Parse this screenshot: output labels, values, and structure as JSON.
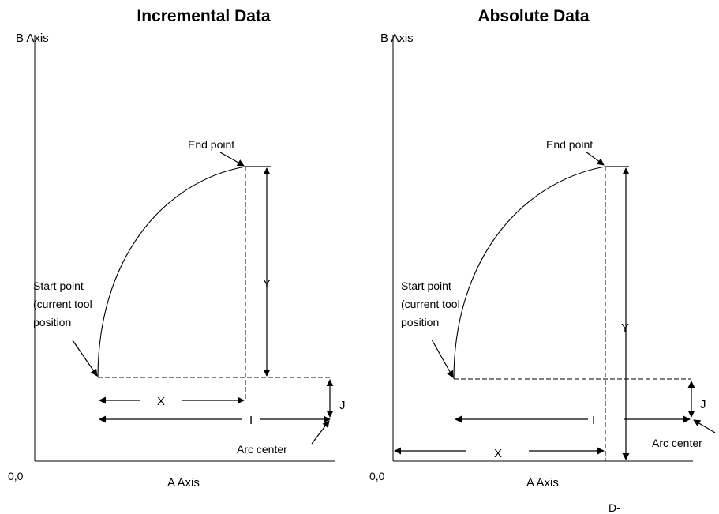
{
  "incremental": {
    "title": "Incremental Data",
    "y_axis_label": "B Axis",
    "x_axis_label": "A Axis",
    "origin_label": "0,0",
    "end_point": "End point",
    "start_point_line1": "Start point",
    "start_point_line2": "(current tool",
    "start_point_line3": "position",
    "dim_y": "Y",
    "dim_x": "X",
    "dim_i": "I",
    "dim_j": "J",
    "arc_center": "Arc center"
  },
  "absolute": {
    "title": "Absolute Data",
    "y_axis_label": "B Axis",
    "x_axis_label": "A Axis",
    "origin_label": "0,0",
    "end_point": "End point",
    "start_point_line1": "Start point",
    "start_point_line2": "(current tool",
    "start_point_line3": "position",
    "dim_y": "Y",
    "dim_x": "X",
    "dim_i": "I",
    "dim_j": "J",
    "arc_center": "Arc center"
  },
  "footer_code": "D-"
}
